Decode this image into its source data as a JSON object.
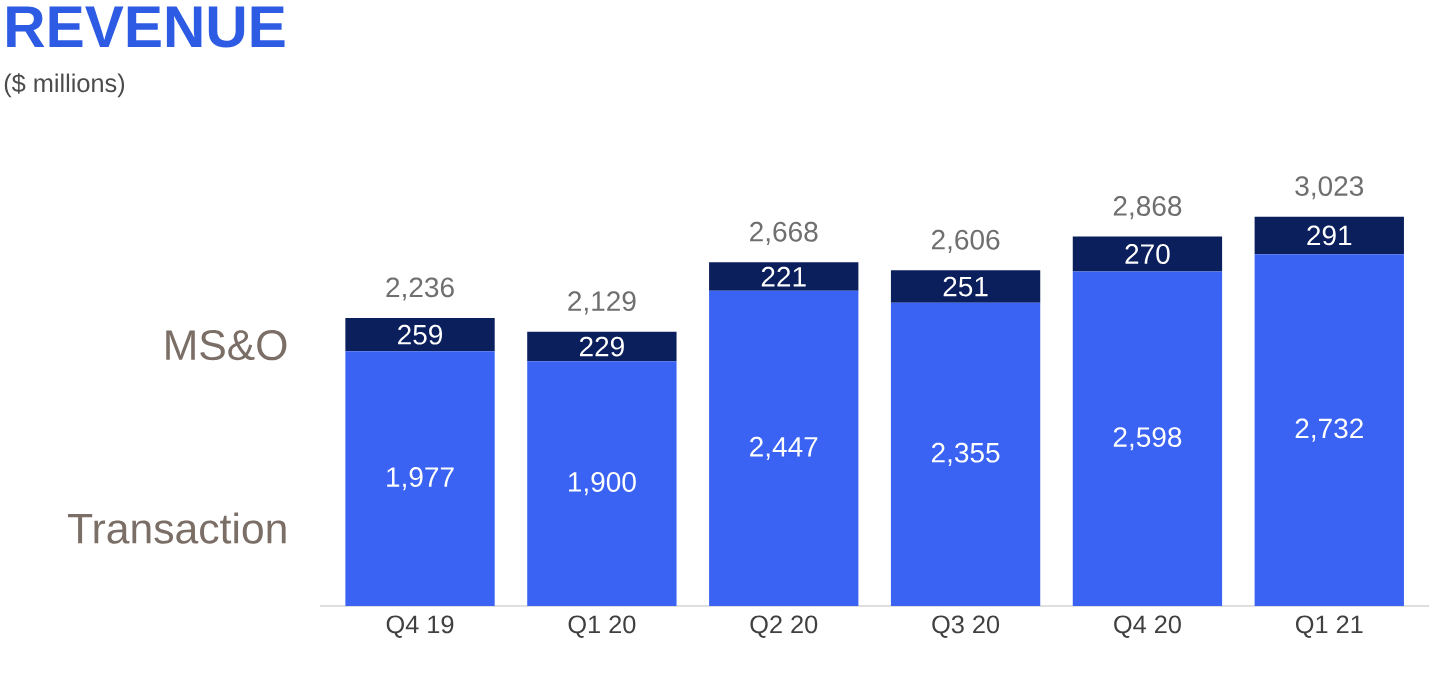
{
  "chart_data": {
    "type": "bar",
    "title": "REVENUE",
    "subtitle": "($ millions)",
    "stacked": true,
    "tick_labels": "x",
    "categories": [
      "Q4 19",
      "Q1 20",
      "Q2 20",
      "Q3 20",
      "Q4 20",
      "Q1 21"
    ],
    "series": [
      {
        "name": "Transaction",
        "color": "#3a63f3",
        "values": [
          1977,
          1900,
          2447,
          2355,
          2598,
          2732
        ],
        "value_labels": [
          "1,977",
          "1,900",
          "2,447",
          "2,355",
          "2,598",
          "2,732"
        ]
      },
      {
        "name": "MS&O",
        "color": "#0a1f5c",
        "values": [
          259,
          229,
          221,
          251,
          270,
          291
        ],
        "value_labels": [
          "259",
          "229",
          "221",
          "251",
          "270",
          "291"
        ]
      }
    ],
    "totals": [
      "2,236",
      "2,129",
      "2,668",
      "2,606",
      "2,868",
      "3,023"
    ]
  }
}
